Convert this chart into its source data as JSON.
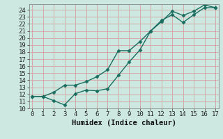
{
  "xlabel": "Humidex (Indice chaleur)",
  "bg_color": "#cce8e0",
  "grid_color_major": "#d4a0a0",
  "grid_color_minor": "#e8d0d0",
  "line_color": "#1a6e60",
  "x_line1": [
    0,
    1,
    2,
    3,
    4,
    5,
    6,
    7,
    8,
    9,
    10,
    11,
    12,
    13,
    14,
    15,
    16,
    17
  ],
  "y_line1": [
    11.7,
    11.7,
    11.1,
    10.5,
    12.1,
    12.6,
    12.5,
    12.8,
    14.7,
    16.6,
    18.3,
    21.0,
    22.3,
    23.8,
    23.2,
    23.8,
    24.7,
    24.3
  ],
  "x_line2": [
    0,
    1,
    2,
    3,
    4,
    5,
    6,
    7,
    8,
    9,
    10,
    11,
    12,
    13,
    14,
    15,
    16,
    17
  ],
  "y_line2": [
    11.7,
    11.7,
    12.3,
    13.3,
    13.3,
    13.8,
    14.5,
    15.5,
    18.2,
    18.2,
    19.5,
    21.0,
    22.5,
    23.3,
    22.2,
    23.3,
    24.3,
    24.3
  ],
  "xlim": [
    -0.3,
    17.3
  ],
  "ylim": [
    10,
    24.8
  ],
  "yticks": [
    10,
    11,
    12,
    13,
    14,
    15,
    16,
    17,
    18,
    19,
    20,
    21,
    22,
    23,
    24
  ],
  "xticks": [
    0,
    1,
    2,
    3,
    4,
    5,
    6,
    7,
    8,
    9,
    10,
    11,
    12,
    13,
    14,
    15,
    16,
    17
  ],
  "marker": "D",
  "marker_size": 2.5,
  "line_width": 1.0,
  "tick_fontsize": 6.5,
  "xlabel_fontsize": 7.5
}
